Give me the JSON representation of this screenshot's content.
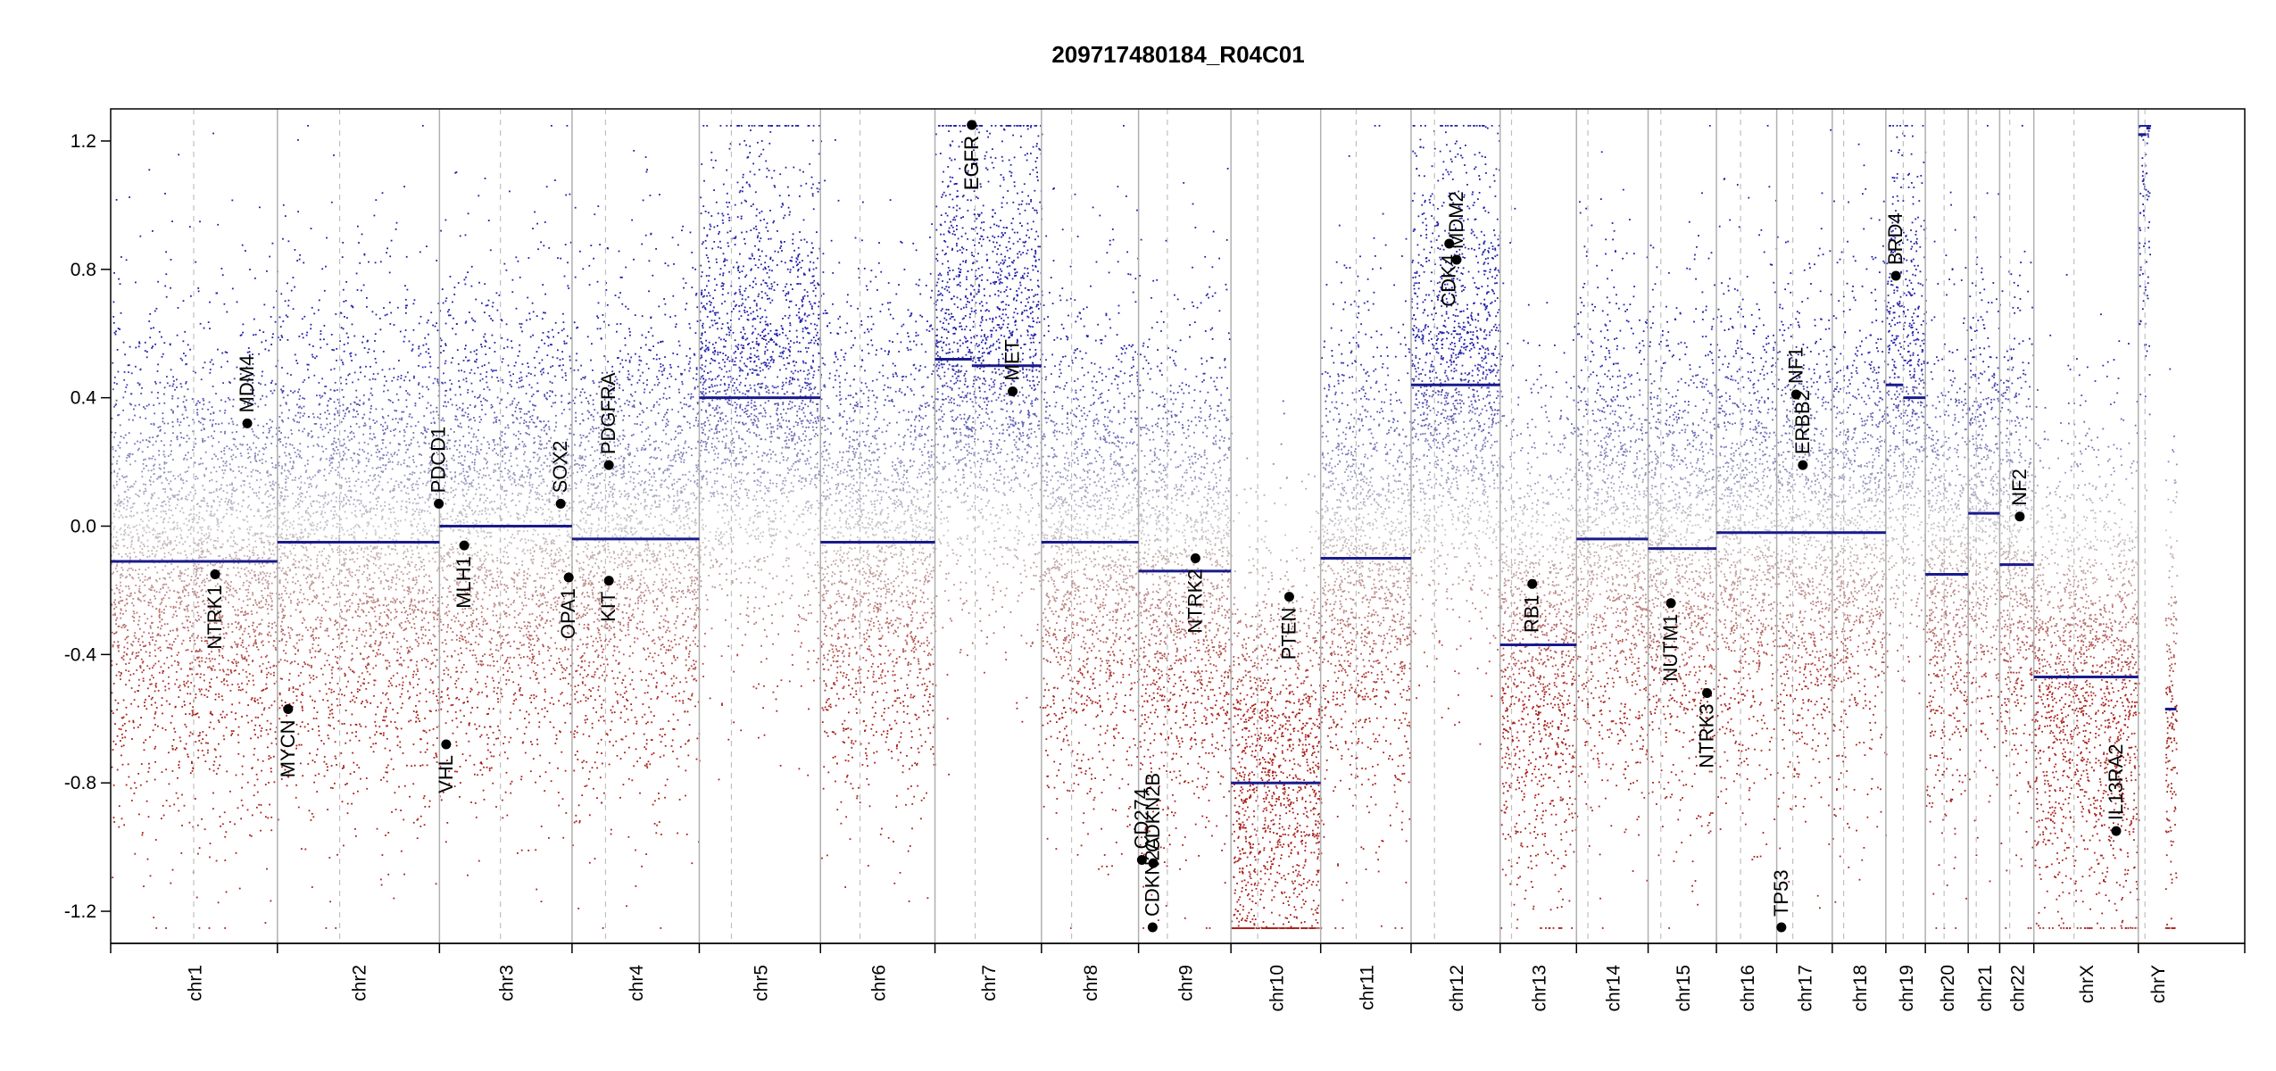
{
  "chart_data": {
    "type": "scatter",
    "title": "209717480184_R04C01",
    "xlabel": "",
    "ylabel": "",
    "ylim": [
      -1.3,
      1.3
    ],
    "yticks": [
      -1.2,
      -0.8,
      -0.4,
      0.0,
      0.4,
      0.8,
      1.2
    ],
    "ytick_labels": [
      "-1.2",
      "-0.8",
      "-0.4",
      "0.0",
      "0.4",
      "0.8",
      "1.2"
    ],
    "x_range_mb": [
      0,
      3187
    ],
    "chromosomes": [
      {
        "name": "chr1",
        "len": 249,
        "centro": 124,
        "segments": [
          {
            "from": 0,
            "to": 249,
            "value": -0.11
          }
        ]
      },
      {
        "name": "chr2",
        "len": 242,
        "centro": 93,
        "segments": [
          {
            "from": 0,
            "to": 242,
            "value": -0.05
          }
        ]
      },
      {
        "name": "chr3",
        "len": 198,
        "centro": 91,
        "segments": [
          {
            "from": 0,
            "to": 198,
            "value": 0.0
          }
        ]
      },
      {
        "name": "chr4",
        "len": 190,
        "centro": 50,
        "segments": [
          {
            "from": 0,
            "to": 190,
            "value": -0.04
          }
        ]
      },
      {
        "name": "chr5",
        "len": 181,
        "centro": 48,
        "segments": [
          {
            "from": 0,
            "to": 181,
            "value": 0.4
          }
        ]
      },
      {
        "name": "chr6",
        "len": 171,
        "centro": 59,
        "segments": [
          {
            "from": 0,
            "to": 171,
            "value": -0.05
          }
        ]
      },
      {
        "name": "chr7",
        "len": 159,
        "centro": 60,
        "segments": [
          {
            "from": 0,
            "to": 55,
            "value": 0.52
          },
          {
            "from": 55,
            "to": 159,
            "value": 0.5
          }
        ]
      },
      {
        "name": "chr8",
        "len": 145,
        "centro": 45,
        "segments": [
          {
            "from": 0,
            "to": 145,
            "value": -0.05
          }
        ]
      },
      {
        "name": "chr9",
        "len": 138,
        "centro": 43,
        "segments": [
          {
            "from": 0,
            "to": 138,
            "value": -0.14
          }
        ]
      },
      {
        "name": "chr10",
        "len": 134,
        "centro": 40,
        "segments": [
          {
            "from": 0,
            "to": 134,
            "value": -0.8
          }
        ]
      },
      {
        "name": "chr11",
        "len": 135,
        "centro": 53,
        "segments": [
          {
            "from": 0,
            "to": 135,
            "value": -0.1
          }
        ]
      },
      {
        "name": "chr12",
        "len": 133,
        "centro": 35,
        "segments": [
          {
            "from": 0,
            "to": 133,
            "value": 0.44
          }
        ]
      },
      {
        "name": "chr13",
        "len": 114,
        "centro": 17,
        "segments": [
          {
            "from": 0,
            "to": 114,
            "value": -0.37
          }
        ]
      },
      {
        "name": "chr14",
        "len": 107,
        "centro": 17,
        "segments": [
          {
            "from": 0,
            "to": 107,
            "value": -0.04
          }
        ]
      },
      {
        "name": "chr15",
        "len": 102,
        "centro": 19,
        "segments": [
          {
            "from": 0,
            "to": 102,
            "value": -0.07
          }
        ]
      },
      {
        "name": "chr16",
        "len": 90,
        "centro": 36,
        "segments": [
          {
            "from": 0,
            "to": 90,
            "value": -0.02
          }
        ]
      },
      {
        "name": "chr17",
        "len": 83,
        "centro": 24,
        "segments": [
          {
            "from": 0,
            "to": 83,
            "value": -0.02
          }
        ]
      },
      {
        "name": "chr18",
        "len": 80,
        "centro": 17,
        "segments": [
          {
            "from": 0,
            "to": 80,
            "value": -0.02
          }
        ]
      },
      {
        "name": "chr19",
        "len": 59,
        "centro": 26,
        "segments": [
          {
            "from": 0,
            "to": 26,
            "value": 0.44
          },
          {
            "from": 26,
            "to": 59,
            "value": 0.4
          }
        ]
      },
      {
        "name": "chr20",
        "len": 64,
        "centro": 28,
        "segments": [
          {
            "from": 0,
            "to": 64,
            "value": -0.15
          }
        ]
      },
      {
        "name": "chr21",
        "len": 47,
        "centro": 12,
        "segments": [
          {
            "from": 0,
            "to": 47,
            "value": 0.04
          }
        ]
      },
      {
        "name": "chr22",
        "len": 51,
        "centro": 15,
        "segments": [
          {
            "from": 0,
            "to": 51,
            "value": -0.12
          }
        ]
      },
      {
        "name": "chrX",
        "len": 156,
        "centro": 60,
        "segments": [
          {
            "from": 0,
            "to": 156,
            "value": -0.47
          }
        ]
      },
      {
        "name": "chrY",
        "len": 57,
        "centro": 10,
        "segments": [
          {
            "from": 0,
            "to": 12,
            "value": 1.22
          },
          {
            "from": 12,
            "to": 17,
            "value": 1.24
          },
          {
            "from": 40,
            "to": 57,
            "value": -0.57
          }
        ]
      }
    ],
    "genes": [
      {
        "name": "NTRK1",
        "chr": "chr1",
        "pos": 156,
        "value": -0.15,
        "label_side": "below"
      },
      {
        "name": "MDM4",
        "chr": "chr1",
        "pos": 204,
        "value": 0.32,
        "label_side": "above"
      },
      {
        "name": "MYCN",
        "chr": "chr2",
        "pos": 16,
        "value": -0.57,
        "label_side": "below"
      },
      {
        "name": "PDCD1",
        "chr": "chr2",
        "pos": 241,
        "value": 0.07,
        "label_side": "above"
      },
      {
        "name": "VHL",
        "chr": "chr3",
        "pos": 10,
        "value": -0.68,
        "label_side": "below"
      },
      {
        "name": "MLH1",
        "chr": "chr3",
        "pos": 37,
        "value": -0.06,
        "label_side": "below"
      },
      {
        "name": "SOX2",
        "chr": "chr3",
        "pos": 181,
        "value": 0.07,
        "label_side": "above"
      },
      {
        "name": "OPA1",
        "chr": "chr3",
        "pos": 193,
        "value": -0.16,
        "label_side": "below"
      },
      {
        "name": "PDGFRA",
        "chr": "chr4",
        "pos": 55,
        "value": 0.19,
        "label_side": "above"
      },
      {
        "name": "KIT",
        "chr": "chr4",
        "pos": 55,
        "value": -0.17,
        "label_side": "below"
      },
      {
        "name": "EGFR",
        "chr": "chr7",
        "pos": 55,
        "value": 1.25,
        "label_side": "below"
      },
      {
        "name": "EGFR",
        "chr": "chr7",
        "pos": 55,
        "value": 1.25,
        "label_side": "below"
      },
      {
        "name": "MET",
        "chr": "chr7",
        "pos": 116,
        "value": 0.42,
        "label_side": "above"
      },
      {
        "name": "CD274",
        "chr": "chr9",
        "pos": 5,
        "value": -1.04,
        "label_side": "above"
      },
      {
        "name": "CDKN2A",
        "chr": "chr9",
        "pos": 21,
        "value": -1.25,
        "label_side": "above"
      },
      {
        "name": "CDKN2B",
        "chr": "chr9",
        "pos": 22,
        "value": -1.05,
        "label_side": "above"
      },
      {
        "name": "NTRK2",
        "chr": "chr9",
        "pos": 85,
        "value": -0.1,
        "label_side": "below"
      },
      {
        "name": "PTEN",
        "chr": "chr10",
        "pos": 87,
        "value": -0.22,
        "label_side": "below"
      },
      {
        "name": "CDK4",
        "chr": "chr12",
        "pos": 57,
        "value": 0.88,
        "label_side": "below"
      },
      {
        "name": "MDM2",
        "chr": "chr12",
        "pos": 68,
        "value": 0.83,
        "label_side": "above"
      },
      {
        "name": "RB1",
        "chr": "chr13",
        "pos": 48,
        "value": -0.18,
        "label_side": "below"
      },
      {
        "name": "NUTM1",
        "chr": "chr15",
        "pos": 34,
        "value": -0.24,
        "label_side": "below"
      },
      {
        "name": "NTRK3",
        "chr": "chr15",
        "pos": 88,
        "value": -0.52,
        "label_side": "below"
      },
      {
        "name": "TP53",
        "chr": "chr17",
        "pos": 7,
        "value": -1.25,
        "label_side": "above"
      },
      {
        "name": "NF1",
        "chr": "chr17",
        "pos": 29,
        "value": 0.41,
        "label_side": "above"
      },
      {
        "name": "ERBB2",
        "chr": "chr17",
        "pos": 39,
        "value": 0.19,
        "label_side": "above"
      },
      {
        "name": "BRD4",
        "chr": "chr19",
        "pos": 15,
        "value": 0.78,
        "label_side": "above"
      },
      {
        "name": "NF2",
        "chr": "chr22",
        "pos": 30,
        "value": 0.03,
        "label_side": "above"
      },
      {
        "name": "IL13RA2",
        "chr": "chrX",
        "pos": 123,
        "value": -0.95,
        "label_side": "above"
      }
    ],
    "colors": {
      "gain": "#1f1fa8",
      "loss": "#a8201a",
      "neutral": "#c8c8c8",
      "segment": "#1a1a8c",
      "chrom_boundary": "#b0b0b0",
      "centromere": "#c0c0c0",
      "axis": "#000000"
    }
  }
}
